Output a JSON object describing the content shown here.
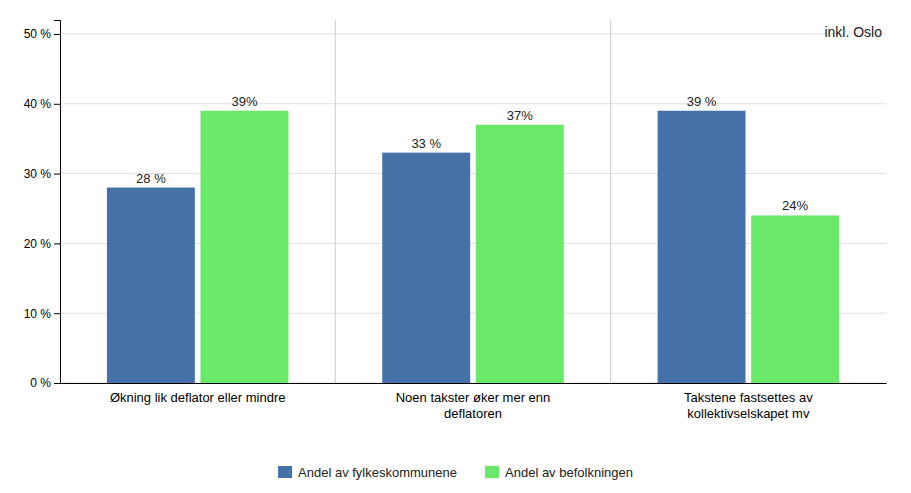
{
  "chart_data": {
    "type": "bar",
    "categories": [
      "Økning lik deflator eller mindre",
      "Noen takster øker mer enn\ndeflatoren",
      "Takstene fastsettes av\nkollektivselskapet mv"
    ],
    "series": [
      {
        "name": "Andel av fylkeskommunene",
        "color": "#4472A8",
        "values": [
          0.28,
          0.33,
          0.39
        ],
        "value_labels": [
          "28 %",
          "33 %",
          "39 %"
        ]
      },
      {
        "name": "Andel av befolkningen",
        "color": "#6AE86A",
        "values": [
          0.39,
          0.37,
          0.24
        ],
        "value_labels": [
          "39%",
          "37%",
          "24%"
        ]
      }
    ],
    "ylim": [
      0,
      0.52
    ],
    "yticks": [
      {
        "value": 0.0,
        "label": "0 %"
      },
      {
        "value": 0.1,
        "label": "10 %"
      },
      {
        "value": 0.2,
        "label": "20 %"
      },
      {
        "value": 0.3,
        "label": "30 %"
      },
      {
        "value": 0.4,
        "label": "40 %"
      },
      {
        "value": 0.5,
        "label": "50 %"
      }
    ],
    "annotation": "inkl. Oslo",
    "grid": true,
    "legend": "bottom",
    "data_labels": true
  }
}
